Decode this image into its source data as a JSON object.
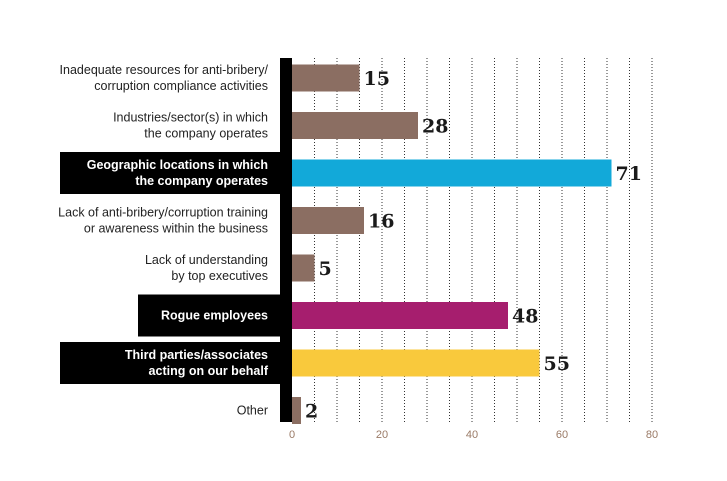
{
  "chart_data": {
    "type": "bar",
    "orientation": "horizontal",
    "categories": [
      [
        "Inadequate resources for anti-bribery/",
        "corruption compliance activities"
      ],
      [
        "Industries/sector(s) in which",
        "the company operates"
      ],
      [
        "Geographic locations in which",
        "the company operates"
      ],
      [
        "Lack of anti-bribery/corruption training",
        "or awareness within the business"
      ],
      [
        "Lack of understanding",
        "by top executives"
      ],
      [
        "Rogue employees"
      ],
      [
        "Third parties/associates",
        "acting on our behalf"
      ],
      [
        "Other"
      ]
    ],
    "values": [
      15,
      28,
      71,
      16,
      5,
      48,
      55,
      2
    ],
    "value_labels": [
      "15",
      "28",
      "71",
      "16",
      "5",
      "48",
      "55",
      "2"
    ],
    "highlighted": [
      false,
      false,
      true,
      false,
      false,
      true,
      true,
      false
    ],
    "bar_colors": [
      "#8b6e62",
      "#8b6e62",
      "#12a9d9",
      "#8b6e62",
      "#8b6e62",
      "#a61e6e",
      "#f9c93c",
      "#8b6e62"
    ],
    "xlim": [
      0,
      80
    ],
    "xticks": [
      0,
      20,
      40,
      60,
      80
    ],
    "xtick_labels": [
      "0",
      "20",
      "40",
      "60",
      "80"
    ],
    "grid": "vertical dotted",
    "title": "",
    "xlabel": "",
    "ylabel": ""
  }
}
